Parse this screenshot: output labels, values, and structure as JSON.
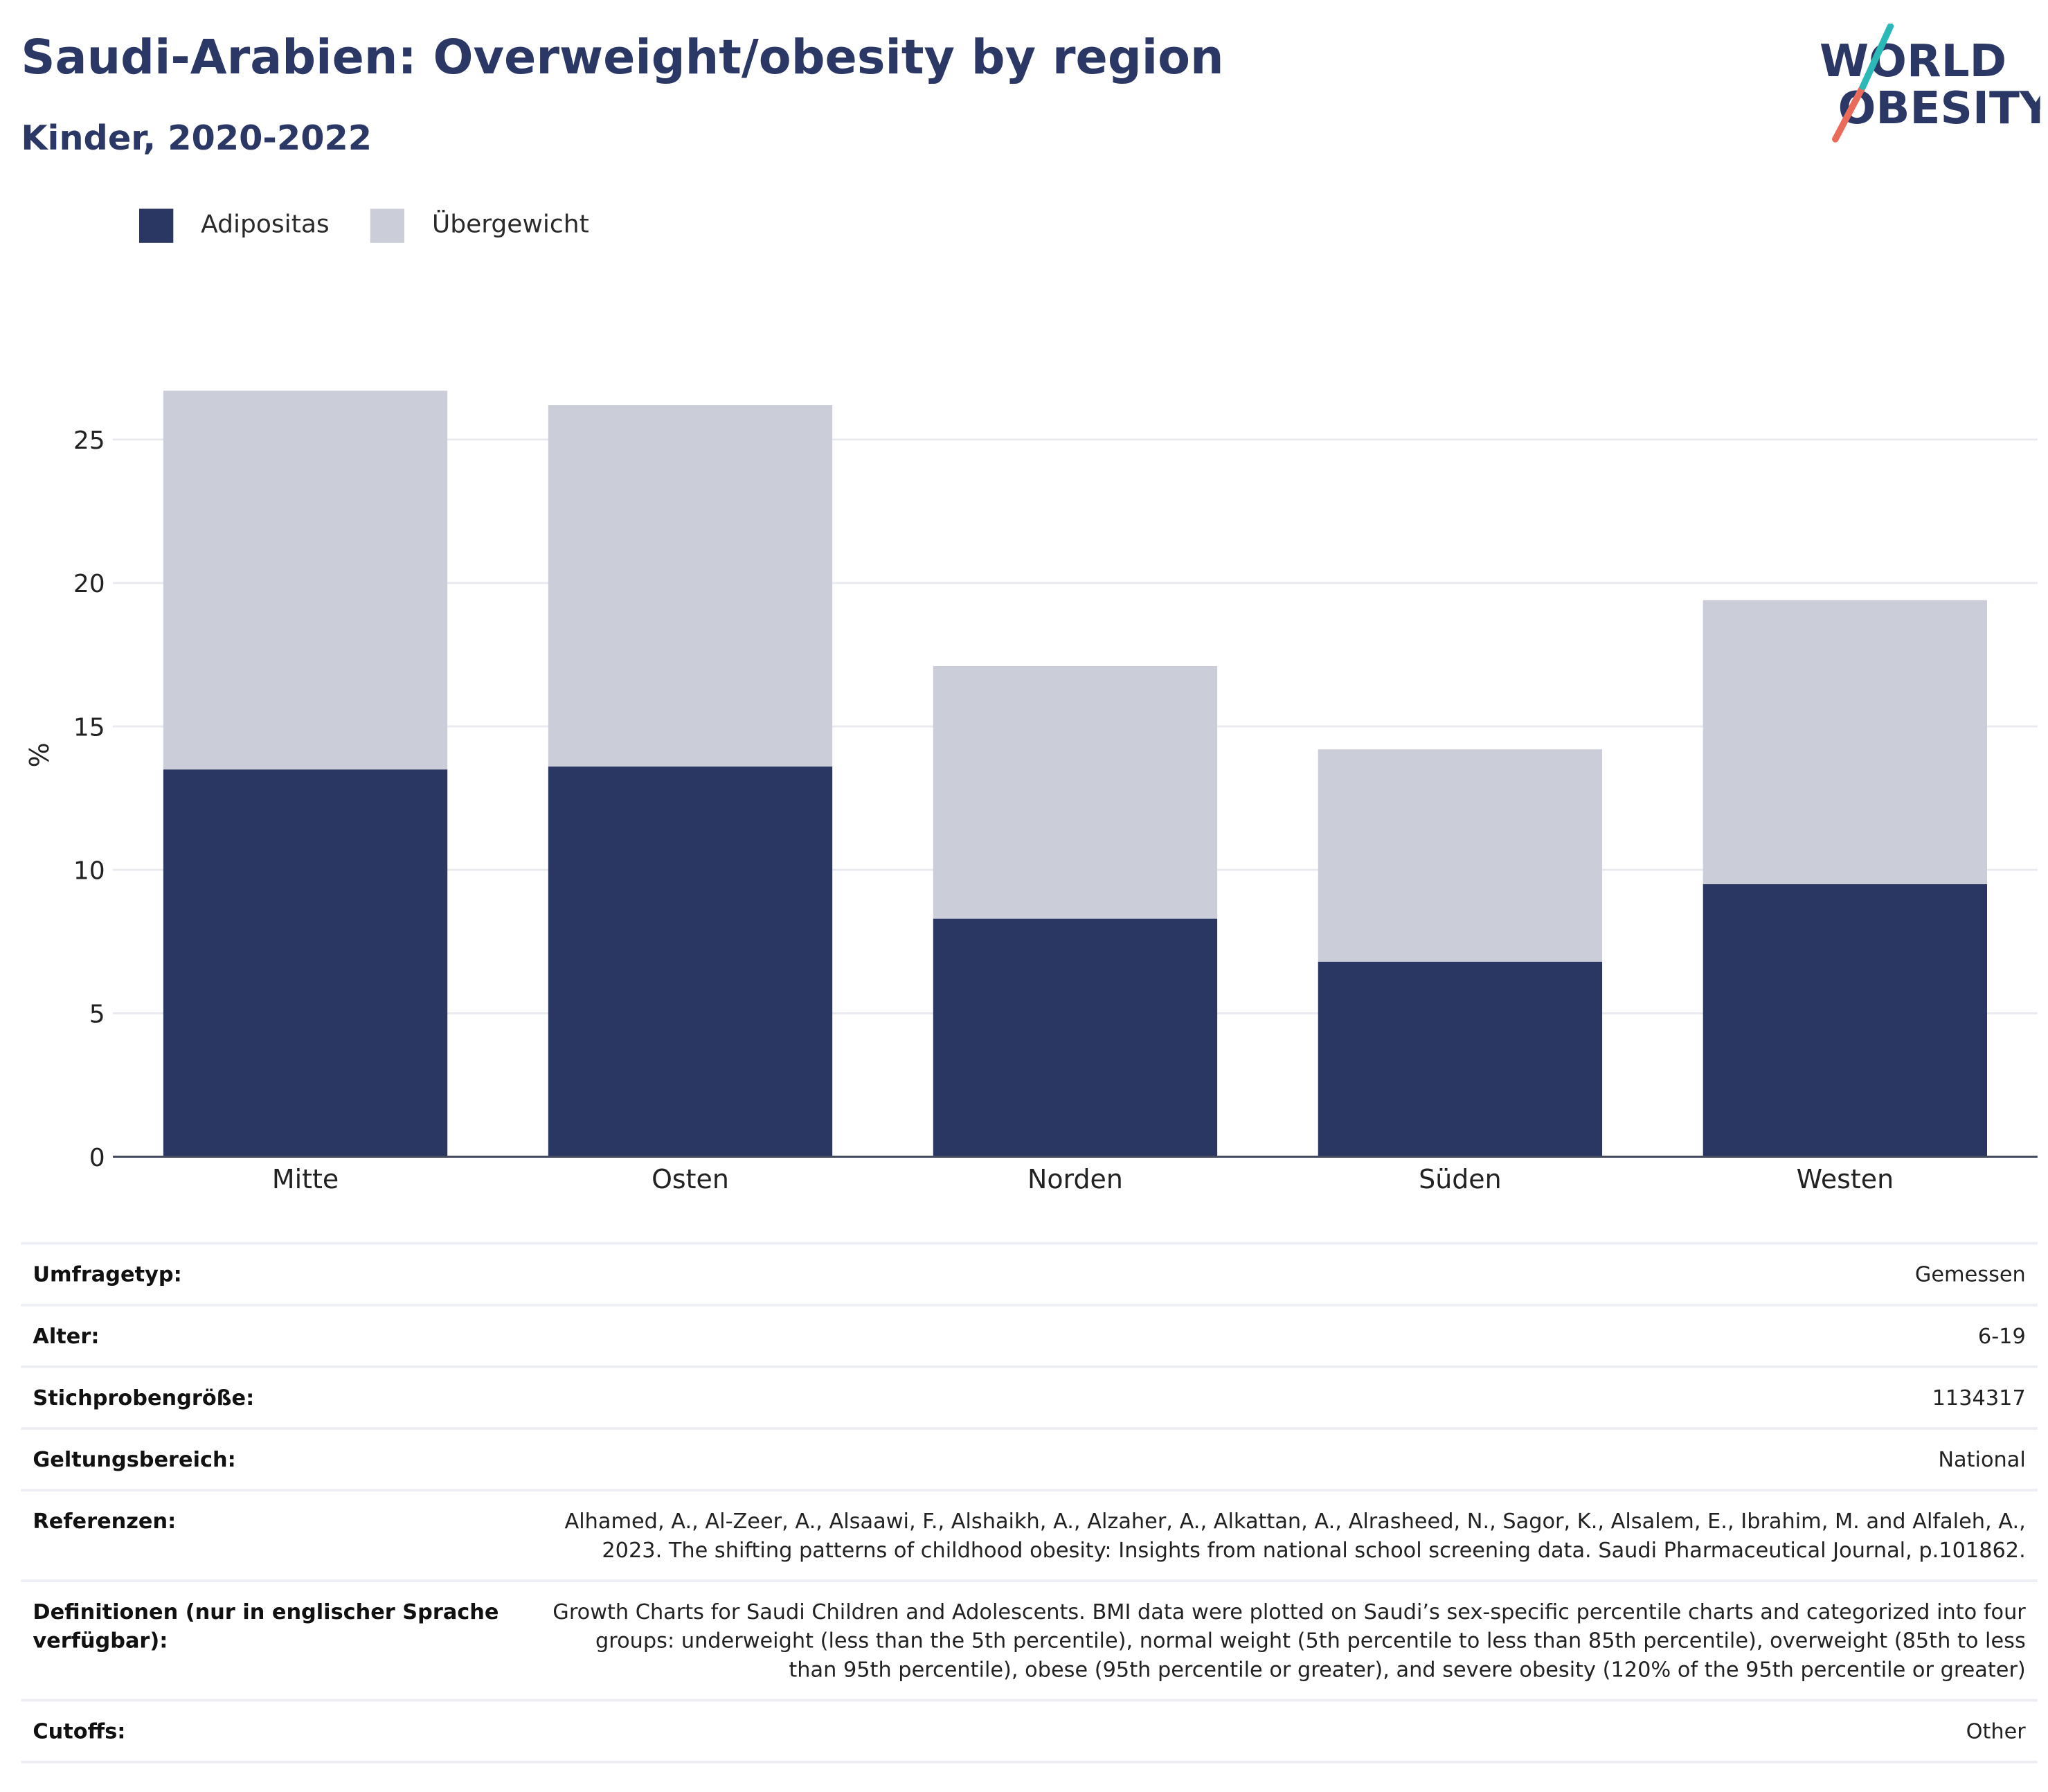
{
  "header": {
    "title": "Saudi-Arabien: Overweight/obesity by region",
    "subtitle": "Kinder, 2020-2022"
  },
  "logo": {
    "line1": "WORLD",
    "line2": "OBESITY",
    "colors": {
      "text": "#2b3865",
      "slash_top": "#2bb9b7",
      "slash_bottom": "#ea6b5a"
    }
  },
  "legend": [
    {
      "label": "Adipositas",
      "color": "#2b3763"
    },
    {
      "label": "Übergewicht",
      "color": "#cbcdd8"
    }
  ],
  "chart_data": {
    "type": "bar",
    "stacked": true,
    "categories": [
      "Mitte",
      "Osten",
      "Norden",
      "Süden",
      "Westen"
    ],
    "series": [
      {
        "name": "Adipositas",
        "values": [
          13.5,
          13.6,
          8.3,
          6.8,
          9.5
        ],
        "color": "#2b3763"
      },
      {
        "name": "Übergewicht",
        "values": [
          13.2,
          12.6,
          8.8,
          7.4,
          9.9
        ],
        "color": "#cbcdd8"
      }
    ],
    "totals": [
      26.7,
      26.2,
      17.1,
      14.2,
      19.4
    ],
    "ylabel": "%",
    "ylim": [
      0,
      28
    ],
    "yticks": [
      0,
      5,
      10,
      15,
      20,
      25
    ],
    "grid": true,
    "legend_position": "top-left"
  },
  "metadata": [
    {
      "label": "Umfragetyp:",
      "value": "Gemessen"
    },
    {
      "label": "Alter:",
      "value": "6-19"
    },
    {
      "label": "Stichprobengröße:",
      "value": "1134317"
    },
    {
      "label": "Geltungsbereich:",
      "value": "National"
    },
    {
      "label": "Referenzen:",
      "value": "Alhamed, A., Al-Zeer, A., Alsaawi, F., Alshaikh, A., Alzaher, A., Alkattan, A., Alrasheed, N., Sagor, K., Alsalem, E., Ibrahim, M. and Alfaleh, A., 2023. The shifting patterns of childhood obesity: Insights from national school screening data. Saudi Pharmaceutical Journal, p.101862."
    },
    {
      "label": "Definitionen (nur in englischer Sprache verfügbar):",
      "value": "Growth Charts for Saudi Children and Adolescents. BMI data were plotted on Saudi’s sex-specific percentile charts and categorized into four groups: underweight (less than the 5th percentile), normal weight (5th percentile to less than 85th percentile), overweight (85th to less than 95th percentile), obese (95th percentile or greater), and severe obesity (120% of the 95th percentile or greater)"
    },
    {
      "label": "Cutoffs:",
      "value": "Other"
    }
  ]
}
